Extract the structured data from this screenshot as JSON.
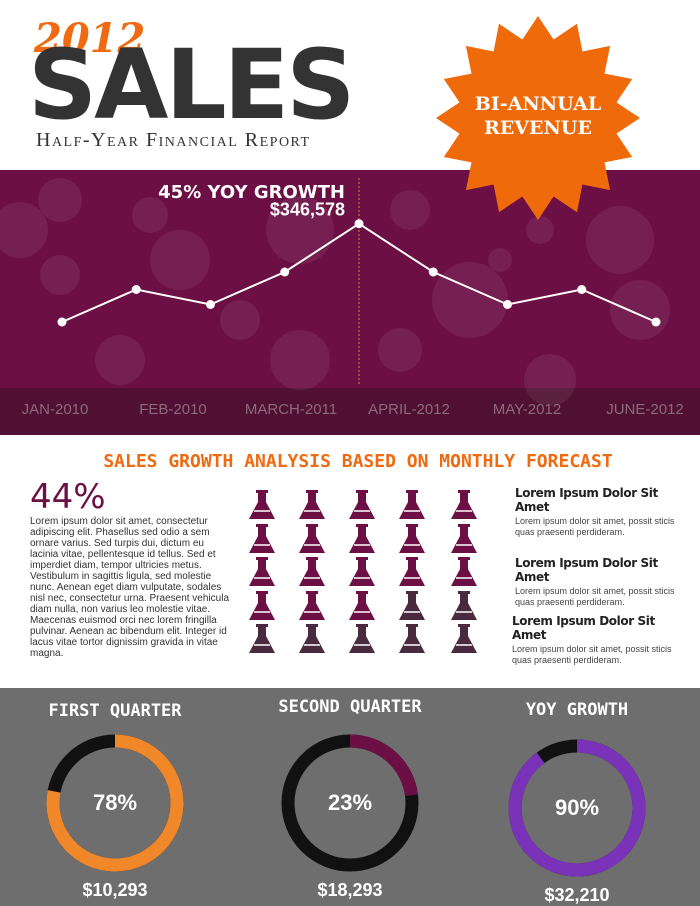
{
  "header": {
    "year": "2012",
    "title": "SALES",
    "subtitle": "Half-Year Financial Report",
    "badge": [
      "BI-ANNUAL",
      "REVENUE"
    ]
  },
  "analysis": {
    "title": "SALES GROWTH ANALYSIS BASED ON MONTHLY FORECAST",
    "stat": "44%",
    "paragraph": "Lorem ipsum dolor sit amet, consectetur adipiscing elit. Phasellus sed odio a sem ornare varius. Sed turpis dui, dictum eu lacinia vitae, pellentesque id tellus. Sed et imperdiet diam, tempor ultricies metus. Vestibulum in sagittis ligula, sed molestie nunc. Aenean eget diam vulputate, sodales nisl nec, consectetur urna. Praesent vehicula diam nulla, non varius leo molestie vitae. Maecenas euismod orci nec lorem fringilla pulvinar. Aenean ac bibendum elit. Integer id lacus vitae tortor dignissim gravida in vitae magna.",
    "items": [
      {
        "heading": "Lorem Ipsum Dolor Sit Amet",
        "text": "Lorem ipsum dolor sit amet, possit sticis quas praesenti perdideram."
      },
      {
        "heading": "Lorem Ipsum Dolor Sit Amet",
        "text": "Lorem ipsum dolor sit amet, possit sticis quas praesenti perdideram."
      },
      {
        "heading": "Lorem Ipsum Dolor Sit Amet",
        "text": "Lorem ipsum dolor sit amet, possit sticis quas praesenti perdideram."
      }
    ]
  },
  "chart_data": [
    {
      "type": "line",
      "annotation": "45% YOY GROWTH",
      "x_labels": [
        "JAN-2010",
        "FEB-2010",
        "MARCH-2011",
        "APRIL-2012",
        "MAY-2012",
        "JUNE-2012"
      ],
      "values": [
        150000,
        215000,
        185000,
        250000,
        346578,
        250000,
        185000,
        215000,
        150000
      ],
      "value_labels": [
        null,
        null,
        null,
        null,
        "$346,578",
        null,
        null,
        null,
        null
      ],
      "color": "#ffffff",
      "ylim": [
        0,
        400000
      ]
    },
    {
      "type": "donut",
      "title": "FIRST QUARTER",
      "values": [
        78
      ],
      "value_labels": [
        "78%"
      ],
      "caption": "$10,293",
      "color": "#f0882a",
      "track_color": "#111111"
    },
    {
      "type": "donut",
      "title": "SECOND QUARTER",
      "values": [
        23
      ],
      "value_labels": [
        "23%"
      ],
      "caption": "$18,293",
      "color": "#6b0f45",
      "track_color": "#111111"
    },
    {
      "type": "donut",
      "title": "YOY GROWTH",
      "values": [
        90
      ],
      "value_labels": [
        "90%"
      ],
      "caption": "$32,210",
      "color": "#7a33b8",
      "track_color": "#111111"
    }
  ]
}
